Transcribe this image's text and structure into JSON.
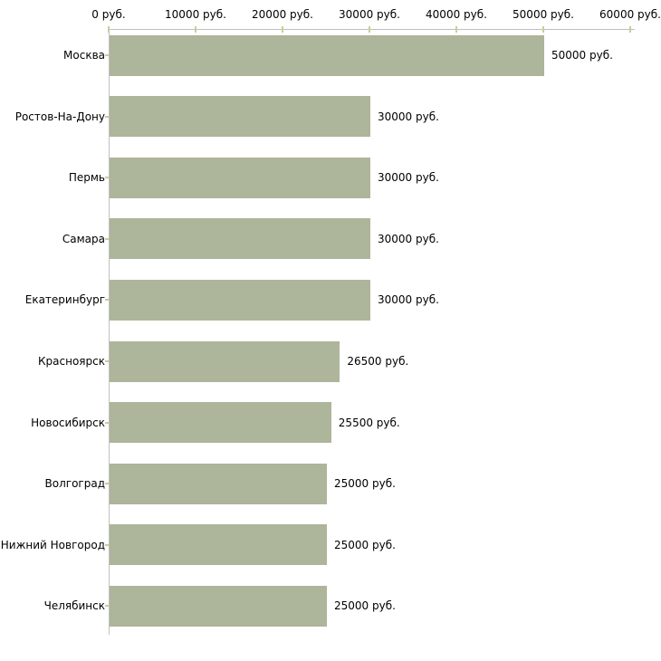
{
  "chart_data": {
    "type": "bar",
    "orientation": "horizontal",
    "categories": [
      "Москва",
      "Ростов-На-Дону",
      "Пермь",
      "Самара",
      "Екатеринбург",
      "Красноярск",
      "Новосибирск",
      "Волгоград",
      "Нижний Новгород",
      "Челябинск"
    ],
    "values": [
      50000,
      30000,
      30000,
      30000,
      30000,
      26500,
      25500,
      25000,
      25000,
      25000
    ],
    "value_labels": [
      "50000 руб.",
      "30000 руб.",
      "30000 руб.",
      "30000 руб.",
      "30000 руб.",
      "26500 руб.",
      "25500 руб.",
      "25000 руб.",
      "25000 руб.",
      "25000 руб."
    ],
    "unit": "руб.",
    "x_axis": {
      "position": "top",
      "min": 0,
      "max": 60000,
      "ticks": [
        0,
        10000,
        20000,
        30000,
        40000,
        50000,
        60000
      ],
      "tick_labels": [
        "0 руб.",
        "10000 руб.",
        "20000 руб.",
        "30000 руб.",
        "40000 руб.",
        "50000 руб.",
        "60000 руб."
      ]
    },
    "grid": false,
    "legend": false,
    "colors": {
      "bar": "#ADB59A",
      "axis_line": "#C0C0C0",
      "tick_mark": "#CCCC99",
      "text": "#000000",
      "background": "#FFFFFF"
    }
  }
}
